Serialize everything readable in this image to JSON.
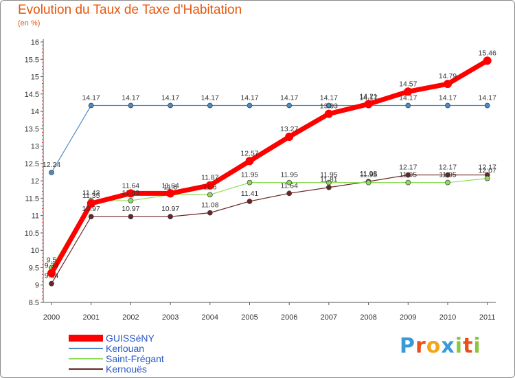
{
  "chart_data": {
    "type": "line",
    "title": "Evolution du Taux de Taxe d'Habitation",
    "subtitle": "(en %)",
    "xlabel": "",
    "ylabel": "",
    "ylim": [
      8.5,
      16
    ],
    "yticks": [
      "8.5",
      "9",
      "9.5",
      "10",
      "10.5",
      "11",
      "11.5",
      "12",
      "12.5",
      "13",
      "13.5",
      "14",
      "14.5",
      "15",
      "15.5",
      "16"
    ],
    "x": [
      "2000",
      "2001",
      "2002",
      "2003",
      "2004",
      "2005",
      "2006",
      "2007",
      "2008",
      "2009",
      "2010",
      "2011"
    ],
    "grid": false,
    "legend_position": "bottom-left",
    "series": [
      {
        "name": "GUISSéNY",
        "color": "#ff0000",
        "values": [
          9.34,
          11.35,
          11.64,
          11.64,
          11.87,
          12.57,
          13.27,
          13.93,
          14.21,
          14.57,
          14.79,
          15.46
        ],
        "labels": [
          "9.34",
          "11.35",
          "11.64",
          "11.64",
          "11.87",
          "12.57",
          "13.27",
          "13.93",
          "14.21",
          "14.57",
          "14.79",
          "15.46"
        ]
      },
      {
        "name": "Kerlouan",
        "color": "#4a8bc7",
        "values": [
          12.24,
          14.17,
          14.17,
          14.17,
          14.17,
          14.17,
          14.17,
          14.17,
          14.17,
          14.17,
          14.17,
          14.17
        ],
        "labels": [
          "12.24",
          "14.17",
          "14.17",
          "14.17",
          "14.17",
          "14.17",
          "14.17",
          "14.17",
          "14.17",
          "14.17",
          "14.17",
          "14.17"
        ]
      },
      {
        "name": "Saint-Frégant",
        "color": "#8fdc5a",
        "values": [
          9.5,
          11.43,
          11.43,
          11.6,
          11.6,
          11.95,
          11.95,
          11.95,
          11.95,
          11.95,
          11.95,
          12.07
        ],
        "labels": [
          "9.5",
          "11.43",
          "11.43",
          "11.6",
          "11.6",
          "11.95",
          "11.95",
          "11.95",
          "11.95",
          "11.95",
          "11.95",
          "12.07"
        ]
      },
      {
        "name": "Kernouës",
        "color": "#6b2323",
        "values": [
          9.04,
          10.97,
          10.97,
          10.97,
          11.08,
          11.41,
          11.64,
          11.81,
          11.98,
          12.17,
          12.17,
          12.17
        ],
        "labels": [
          "9.04",
          "10.97",
          "10.97",
          "10.97",
          "11.08",
          "11.41",
          "11.64",
          "11.81",
          "11.98",
          "12.17",
          "12.17",
          "12.17"
        ]
      }
    ]
  },
  "logo": {
    "text": "Proxiti",
    "letters": [
      {
        "ch": "P",
        "color": "#3a9ad9"
      },
      {
        "ch": "r",
        "color": "#e8501e"
      },
      {
        "ch": "o",
        "color": "#f2a51a"
      },
      {
        "ch": "x",
        "color": "#3a9ad9"
      },
      {
        "ch": "i",
        "color": "#8cc63f"
      },
      {
        "ch": "t",
        "color": "#e8501e"
      },
      {
        "ch": "i",
        "color": "#8cc63f"
      }
    ]
  }
}
